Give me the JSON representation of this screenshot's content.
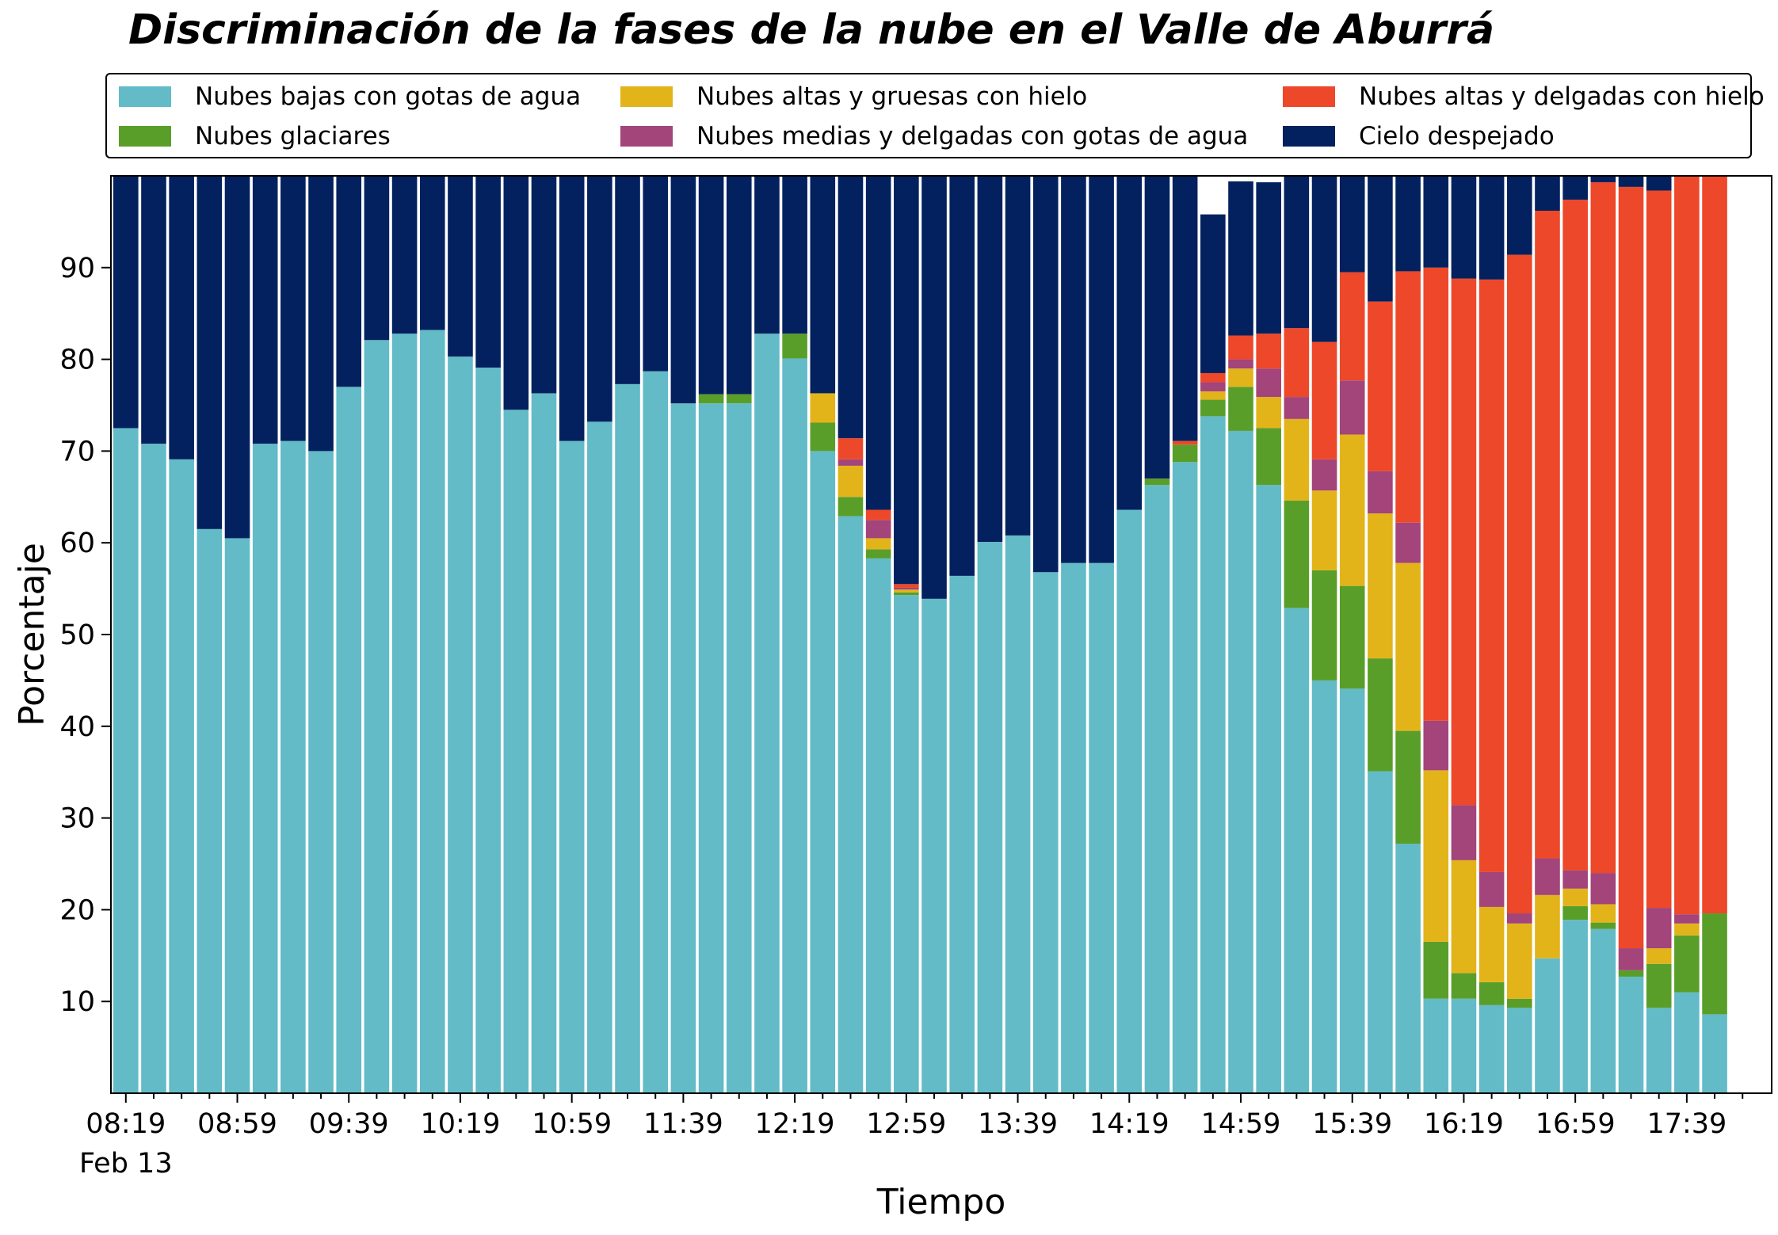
{
  "chart_data": {
    "type": "bar",
    "stacked": true,
    "title": "Discriminación de la fases de la nube en el Valle de Aburrá",
    "xlabel": "Tiempo",
    "ylabel": "Porcentaje",
    "ylim": [
      0,
      100
    ],
    "yticks": [
      10,
      20,
      30,
      40,
      50,
      60,
      70,
      80,
      90
    ],
    "x_start": "08:19",
    "x_step_minutes": 10,
    "x_major_every": 4,
    "x_date_label": "Feb 13",
    "x_tick_labels": [
      "08:19",
      "08:59",
      "09:39",
      "10:19",
      "10:59",
      "11:39",
      "12:19",
      "12:59",
      "13:39",
      "14:19",
      "14:59",
      "15:39",
      "16:19",
      "16:59",
      "17:39"
    ],
    "legend": {
      "position": "top",
      "columns": 3
    },
    "grid": false,
    "series": [
      {
        "name": "Nubes bajas con gotas de agua",
        "color": "#62bbc7",
        "values": [
          72.5,
          70.8,
          69.1,
          61.5,
          60.5,
          70.8,
          71.1,
          70.0,
          77.0,
          82.1,
          82.8,
          83.2,
          80.3,
          79.1,
          74.5,
          76.3,
          71.1,
          73.2,
          77.3,
          78.7,
          75.2,
          75.2,
          75.2,
          82.8,
          80.1,
          70.0,
          62.9,
          58.3,
          54.3,
          53.9,
          56.4,
          60.1,
          60.8,
          56.8,
          57.8,
          57.8,
          63.6,
          66.3,
          68.8,
          73.8,
          72.2,
          66.3,
          52.9,
          45.0,
          44.1,
          35.1,
          27.2,
          10.3,
          10.3,
          9.6,
          9.3,
          14.7,
          18.9,
          17.9,
          12.7,
          9.3,
          11.0,
          8.6
        ]
      },
      {
        "name": "Nubes glaciares",
        "color": "#5a9e2a",
        "values": [
          0,
          0,
          0,
          0,
          0,
          0,
          0,
          0,
          0,
          0,
          0,
          0,
          0,
          0,
          0,
          0,
          0,
          0,
          0,
          0,
          0,
          1.0,
          1.0,
          0,
          2.7,
          3.1,
          2.1,
          1.0,
          0.3,
          0,
          0,
          0,
          0,
          0,
          0,
          0,
          0,
          0.7,
          1.9,
          1.8,
          4.8,
          6.2,
          11.7,
          12.0,
          11.2,
          12.3,
          12.3,
          6.2,
          2.8,
          2.5,
          1.0,
          0,
          1.5,
          0.7,
          0.7,
          4.8,
          6.2,
          11.0
        ]
      },
      {
        "name": "Nubes altas y gruesas con hielo",
        "color": "#e2b41a",
        "values": [
          0,
          0,
          0,
          0,
          0,
          0,
          0,
          0,
          0,
          0,
          0,
          0,
          0,
          0,
          0,
          0,
          0,
          0,
          0,
          0,
          0,
          0,
          0,
          0,
          0,
          3.2,
          3.4,
          1.2,
          0.3,
          0,
          0,
          0,
          0,
          0,
          0,
          0,
          0,
          0,
          0,
          0.9,
          2.0,
          3.4,
          8.9,
          8.7,
          16.5,
          15.8,
          18.3,
          18.7,
          12.3,
          8.2,
          8.2,
          6.9,
          1.9,
          2.0,
          0,
          1.7,
          1.3,
          0
        ]
      },
      {
        "name": "Nubes medias y delgadas con gotas de agua",
        "color": "#a3447a",
        "values": [
          0,
          0,
          0,
          0,
          0,
          0,
          0,
          0,
          0,
          0,
          0,
          0,
          0,
          0,
          0,
          0,
          0,
          0,
          0,
          0,
          0,
          0,
          0,
          0,
          0,
          0,
          0.7,
          2.0,
          0.2,
          0,
          0,
          0,
          0,
          0,
          0,
          0,
          0,
          0,
          0,
          1.0,
          1.0,
          3.1,
          2.4,
          3.4,
          5.9,
          4.6,
          4.4,
          5.4,
          6.0,
          3.8,
          1.1,
          4.0,
          2.0,
          3.4,
          2.4,
          4.4,
          1.0,
          0
        ]
      },
      {
        "name": "Nubes altas y delgadas con hielo",
        "color": "#ec4829",
        "values": [
          0,
          0,
          0,
          0,
          0,
          0,
          0,
          0,
          0,
          0,
          0,
          0,
          0,
          0,
          0,
          0,
          0,
          0,
          0,
          0,
          0,
          0,
          0,
          0,
          0,
          0,
          2.3,
          1.1,
          0.4,
          0,
          0,
          0,
          0,
          0,
          0,
          0,
          0,
          0,
          0.4,
          1.0,
          2.6,
          3.8,
          7.5,
          12.8,
          11.8,
          18.5,
          27.4,
          49.4,
          57.4,
          64.6,
          71.8,
          70.6,
          73.1,
          75.3,
          83.0,
          78.2,
          80.5,
          80.4
        ]
      },
      {
        "name": "Cielo despejado",
        "color": "#03215e",
        "values": [
          27.5,
          29.2,
          30.9,
          38.5,
          39.5,
          29.2,
          28.9,
          30.0,
          23.0,
          17.9,
          17.2,
          16.8,
          19.7,
          20.9,
          25.5,
          23.7,
          28.9,
          26.8,
          22.7,
          21.3,
          24.8,
          23.8,
          23.8,
          17.2,
          17.2,
          23.7,
          28.6,
          36.4,
          44.5,
          46.1,
          43.6,
          39.9,
          39.2,
          43.2,
          42.2,
          42.2,
          36.4,
          33.0,
          28.9,
          17.3,
          16.8,
          16.5,
          16.6,
          18.1,
          10.5,
          13.7,
          10.4,
          10.0,
          11.2,
          11.3,
          8.6,
          3.8,
          2.6,
          0.7,
          1.2,
          1.6,
          0,
          0
        ]
      }
    ]
  }
}
